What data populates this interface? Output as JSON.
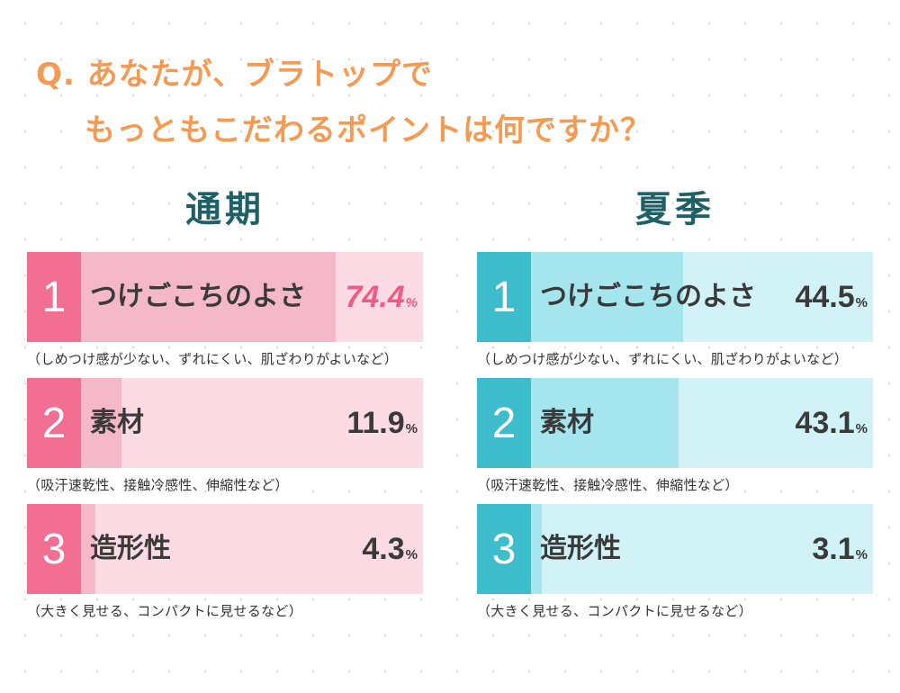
{
  "title": {
    "line1": "Q. あなたが、ブラトップで",
    "line2": "もっともこだわるポイントは何ですか？"
  },
  "colors": {
    "title": "#f49a52",
    "heading": "#1f5f66",
    "regular": {
      "rank": "#f26e92",
      "fill": "#f5b8c9",
      "track": "#fcdbe4",
      "highlight_value": "#ef5b86"
    },
    "summer": {
      "rank": "#3dbdcc",
      "fill": "#a5e5ee",
      "track": "#d1f2f6"
    }
  },
  "chart_data": [
    {
      "type": "bar",
      "title": "通期",
      "unit": "%",
      "ylim": [
        0,
        100
      ],
      "categories": [
        "つけごこちのよさ",
        "素材",
        "造形性"
      ],
      "ranks": [
        "1",
        "2",
        "3"
      ],
      "values": [
        74.4,
        11.9,
        4.3
      ],
      "value_labels": [
        "74.4",
        "11.9",
        "4.3"
      ],
      "notes": [
        "（しめつけ感が少ない、ずれにくい、肌ざわりがよいなど）",
        "（吸汗速乾性、接触冷感性、伸縮性など）",
        "（大きく見せる、コンパクトに見せるなど）"
      ]
    },
    {
      "type": "bar",
      "title": "夏季",
      "unit": "%",
      "ylim": [
        0,
        100
      ],
      "categories": [
        "つけごこちのよさ",
        "素材",
        "造形性"
      ],
      "ranks": [
        "1",
        "2",
        "3"
      ],
      "values": [
        44.5,
        43.1,
        3.1
      ],
      "value_labels": [
        "44.5",
        "43.1",
        "3.1"
      ],
      "notes": [
        "（しめつけ感が少ない、ずれにくい、肌ざわりがよいなど）",
        "（吸汗速乾性、接触冷感性、伸縮性など）",
        "（大きく見せる、コンパクトに見せるなど）"
      ]
    }
  ]
}
